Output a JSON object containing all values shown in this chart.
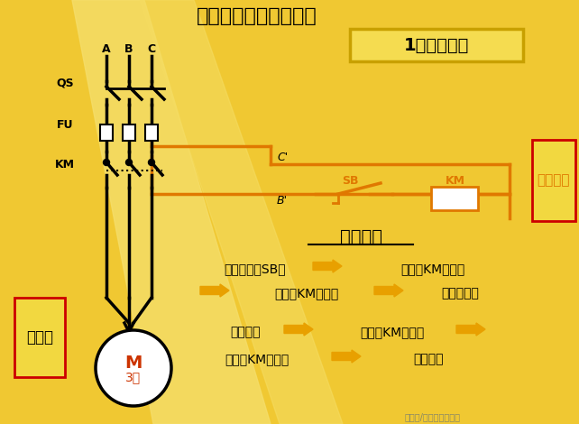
{
  "bg_color": "#f0c832",
  "title": "一、异步机的直接起动",
  "subtitle": "1、点动控制",
  "orange": "#e07800",
  "black": "#000000",
  "white": "#ffffff",
  "red": "#cc0000",
  "yellow_arrow": "#e8a000",
  "label_A": "A",
  "label_B": "B",
  "label_C": "C",
  "label_QS": "QS",
  "label_FU": "FU",
  "label_KM": "KM",
  "label_SB": "SB",
  "label_Cprime": "C'",
  "label_Bprime": "B'",
  "label_main": "主电路",
  "label_control": "控制电路",
  "process_title": "动作过程",
  "t1a": "按下按鈕（SB）",
  "t1b": "线圈（KM）通电",
  "t2a": "触头（KM）闭合",
  "t2b": "电机转动；",
  "t3a": "按鈕松开",
  "t3b": "线圈（KM）断电",
  "t4a": "触头（KM）打开",
  "t4b": "电机停转",
  "watermark": "头条号/电气自动化应用",
  "M_label": "M",
  "M_sub": "3～"
}
